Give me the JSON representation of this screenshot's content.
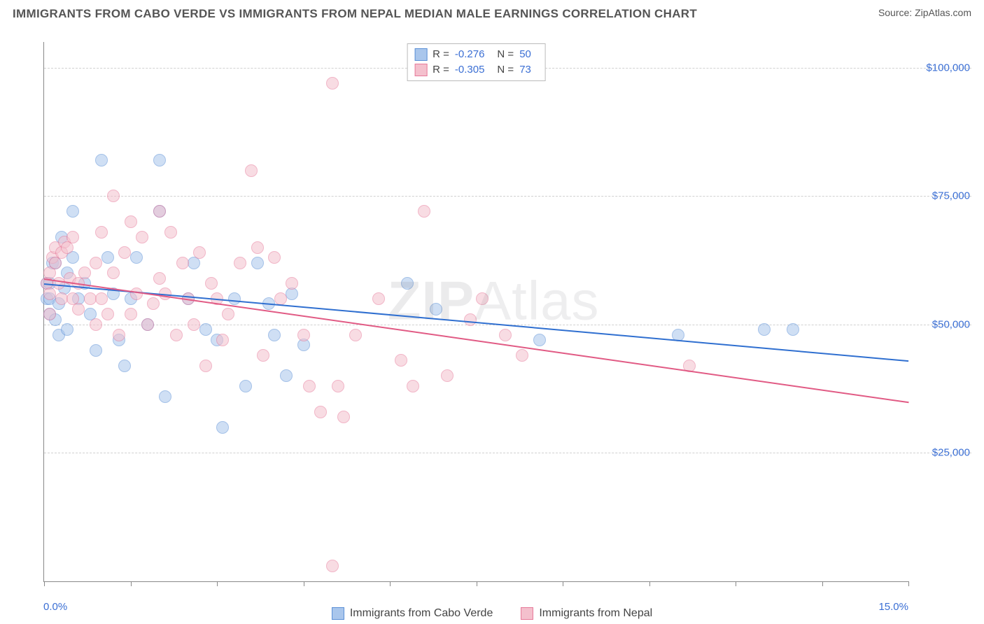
{
  "header": {
    "title": "IMMIGRANTS FROM CABO VERDE VS IMMIGRANTS FROM NEPAL MEDIAN MALE EARNINGS CORRELATION CHART",
    "source_prefix": "Source: ",
    "source_name": "ZipAtlas.com"
  },
  "watermark": {
    "part1": "ZIP",
    "part2": "Atlas"
  },
  "chart": {
    "type": "scatter",
    "ylabel": "Median Male Earnings",
    "xlim": [
      0,
      15
    ],
    "ylim": [
      0,
      105000
    ],
    "x_axis": {
      "tick_positions": [
        0,
        1.5,
        3.0,
        4.5,
        6.0,
        7.5,
        9.0,
        10.5,
        12.0,
        13.5,
        15.0
      ],
      "end_labels": {
        "min": "0.0%",
        "max": "15.0%"
      }
    },
    "y_axis": {
      "gridlines": [
        25000,
        50000,
        75000,
        100000
      ],
      "labels": [
        "$25,000",
        "$50,000",
        "$75,000",
        "$100,000"
      ]
    },
    "background_color": "#ffffff",
    "grid_color": "#d0d0d0",
    "axis_color": "#888888",
    "point_radius": 9,
    "point_opacity": 0.55,
    "series": [
      {
        "id": "cabo_verde",
        "name": "Immigrants from Cabo Verde",
        "fill_color": "#a9c6ec",
        "stroke_color": "#5b8fd6",
        "line_color": "#2f6fd0",
        "R": "-0.276",
        "N": "50",
        "trend": {
          "x1": 0,
          "y1": 58000,
          "x2": 15,
          "y2": 43000
        },
        "points": [
          [
            0.05,
            58000
          ],
          [
            0.05,
            55000
          ],
          [
            0.1,
            55000
          ],
          [
            0.1,
            52000
          ],
          [
            0.1,
            58000
          ],
          [
            0.15,
            62000
          ],
          [
            0.2,
            62000
          ],
          [
            0.2,
            51000
          ],
          [
            0.25,
            48000
          ],
          [
            0.25,
            54000
          ],
          [
            0.3,
            67000
          ],
          [
            0.35,
            57000
          ],
          [
            0.4,
            60000
          ],
          [
            0.4,
            49000
          ],
          [
            0.5,
            72000
          ],
          [
            0.5,
            63000
          ],
          [
            0.6,
            55000
          ],
          [
            0.7,
            58000
          ],
          [
            0.8,
            52000
          ],
          [
            0.9,
            45000
          ],
          [
            1.0,
            82000
          ],
          [
            1.1,
            63000
          ],
          [
            1.2,
            56000
          ],
          [
            1.3,
            47000
          ],
          [
            1.4,
            42000
          ],
          [
            1.5,
            55000
          ],
          [
            1.6,
            63000
          ],
          [
            1.8,
            50000
          ],
          [
            2.0,
            82000
          ],
          [
            2.0,
            72000
          ],
          [
            2.1,
            36000
          ],
          [
            2.5,
            55000
          ],
          [
            2.6,
            62000
          ],
          [
            2.8,
            49000
          ],
          [
            3.0,
            47000
          ],
          [
            3.1,
            30000
          ],
          [
            3.3,
            55000
          ],
          [
            3.5,
            38000
          ],
          [
            3.7,
            62000
          ],
          [
            3.9,
            54000
          ],
          [
            4.0,
            48000
          ],
          [
            4.2,
            40000
          ],
          [
            4.3,
            56000
          ],
          [
            4.5,
            46000
          ],
          [
            6.3,
            58000
          ],
          [
            6.8,
            53000
          ],
          [
            8.6,
            47000
          ],
          [
            11.0,
            48000
          ],
          [
            12.5,
            49000
          ],
          [
            13.0,
            49000
          ]
        ]
      },
      {
        "id": "nepal",
        "name": "Immigrants from Nepal",
        "fill_color": "#f4c0cd",
        "stroke_color": "#e77a9a",
        "line_color": "#e15a84",
        "R": "-0.305",
        "N": "73",
        "trend": {
          "x1": 0,
          "y1": 59000,
          "x2": 15,
          "y2": 35000
        },
        "points": [
          [
            0.05,
            58000
          ],
          [
            0.1,
            56000
          ],
          [
            0.1,
            60000
          ],
          [
            0.15,
            63000
          ],
          [
            0.2,
            65000
          ],
          [
            0.2,
            62000
          ],
          [
            0.25,
            58000
          ],
          [
            0.3,
            55000
          ],
          [
            0.3,
            64000
          ],
          [
            0.35,
            66000
          ],
          [
            0.4,
            65000
          ],
          [
            0.45,
            59000
          ],
          [
            0.5,
            67000
          ],
          [
            0.5,
            55000
          ],
          [
            0.6,
            58000
          ],
          [
            0.6,
            53000
          ],
          [
            0.7,
            60000
          ],
          [
            0.8,
            55000
          ],
          [
            0.9,
            62000
          ],
          [
            0.9,
            50000
          ],
          [
            1.0,
            68000
          ],
          [
            1.0,
            55000
          ],
          [
            1.1,
            52000
          ],
          [
            1.2,
            75000
          ],
          [
            1.2,
            60000
          ],
          [
            1.3,
            48000
          ],
          [
            1.4,
            64000
          ],
          [
            1.5,
            70000
          ],
          [
            1.5,
            52000
          ],
          [
            1.6,
            56000
          ],
          [
            1.7,
            67000
          ],
          [
            1.8,
            50000
          ],
          [
            1.9,
            54000
          ],
          [
            2.0,
            72000
          ],
          [
            2.0,
            59000
          ],
          [
            2.1,
            56000
          ],
          [
            2.2,
            68000
          ],
          [
            2.3,
            48000
          ],
          [
            2.4,
            62000
          ],
          [
            2.5,
            55000
          ],
          [
            2.6,
            50000
          ],
          [
            2.7,
            64000
          ],
          [
            2.8,
            42000
          ],
          [
            2.9,
            58000
          ],
          [
            3.0,
            55000
          ],
          [
            3.1,
            47000
          ],
          [
            3.2,
            52000
          ],
          [
            3.4,
            62000
          ],
          [
            3.6,
            80000
          ],
          [
            3.7,
            65000
          ],
          [
            3.8,
            44000
          ],
          [
            4.0,
            63000
          ],
          [
            4.1,
            55000
          ],
          [
            4.3,
            58000
          ],
          [
            4.5,
            48000
          ],
          [
            4.6,
            38000
          ],
          [
            4.8,
            33000
          ],
          [
            5.0,
            97000
          ],
          [
            5.1,
            38000
          ],
          [
            5.2,
            32000
          ],
          [
            5.4,
            48000
          ],
          [
            5.8,
            55000
          ],
          [
            6.2,
            43000
          ],
          [
            6.4,
            38000
          ],
          [
            6.6,
            72000
          ],
          [
            7.0,
            40000
          ],
          [
            7.4,
            51000
          ],
          [
            7.6,
            55000
          ],
          [
            8.0,
            48000
          ],
          [
            8.3,
            44000
          ],
          [
            11.2,
            42000
          ],
          [
            5.0,
            3000
          ],
          [
            0.1,
            52000
          ]
        ]
      }
    ]
  },
  "legend_top": {
    "r_label": "R =",
    "n_label": "N ="
  }
}
